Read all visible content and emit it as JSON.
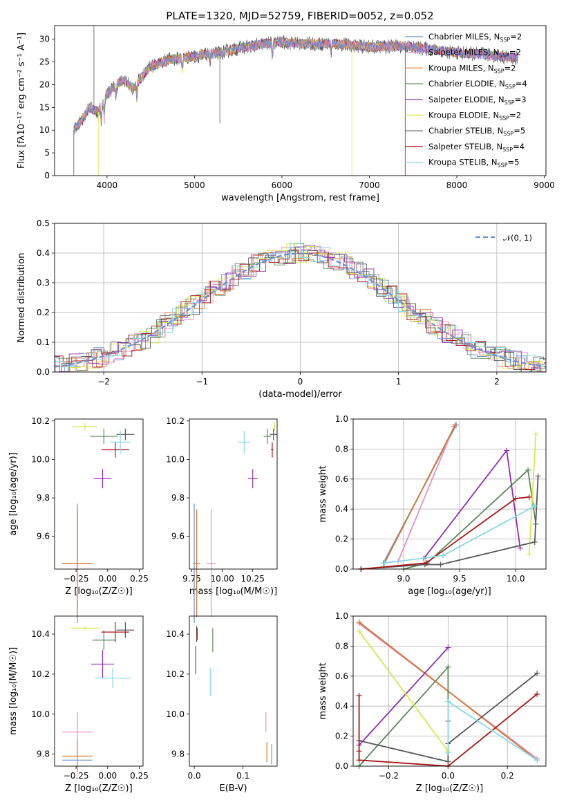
{
  "colors": [
    "#6a8fd6",
    "#e58fc6",
    "#d9782d",
    "#5a8a5a",
    "#8e2db0",
    "#d6e84a",
    "#555555",
    "#a81414",
    "#86d8e4"
  ],
  "chart_data": [
    {
      "id": "spectrum",
      "type": "line",
      "title": "PLATE=1320, MJD=52759, FIBERID=0052, z=0.052",
      "xlabel": "wavelength [Angstrom, rest frame]",
      "ylabel": "Flux [fλ10⁻¹⁷ erg cm⁻² s⁻¹ A⁻¹]",
      "xlim": [
        3400,
        9020
      ],
      "ylim": [
        0,
        33
      ],
      "xticks": [
        "4000",
        "5000",
        "6000",
        "7000",
        "8000",
        "9000"
      ],
      "yticks": [
        "0",
        "5",
        "10",
        "15",
        "20",
        "25",
        "30"
      ],
      "continuum": [
        [
          3620,
          10
        ],
        [
          3700,
          12
        ],
        [
          3800,
          15
        ],
        [
          3900,
          14
        ],
        [
          4000,
          18
        ],
        [
          4100,
          20
        ],
        [
          4200,
          21
        ],
        [
          4300,
          19
        ],
        [
          4400,
          22
        ],
        [
          4500,
          24
        ],
        [
          4700,
          25.5
        ],
        [
          4900,
          26
        ],
        [
          5100,
          26.5
        ],
        [
          5300,
          27
        ],
        [
          5500,
          28
        ],
        [
          5800,
          29
        ],
        [
          6000,
          29.3
        ],
        [
          6300,
          29
        ],
        [
          6600,
          29
        ],
        [
          7000,
          28.3
        ],
        [
          7400,
          28.5
        ],
        [
          7600,
          28
        ],
        [
          7800,
          27.5
        ],
        [
          8000,
          27
        ],
        [
          8300,
          26.7
        ],
        [
          8600,
          26
        ],
        [
          8700,
          25.7
        ]
      ],
      "series": [
        {
          "name": "Chabrier MILES, N",
          "sub": "SSP",
          "n": "=2"
        },
        {
          "name": "Salpeter MILES, N",
          "sub": "SSP",
          "n": "=2"
        },
        {
          "name": "Kroupa MILES, N",
          "sub": "SSP",
          "n": "=2"
        },
        {
          "name": "Chabrier ELODIE, N",
          "sub": "SSP",
          "n": "=4"
        },
        {
          "name": "Salpeter ELODIE, N",
          "sub": "SSP",
          "n": "=3"
        },
        {
          "name": "Kroupa ELODIE, N",
          "sub": "SSP",
          "n": "=2"
        },
        {
          "name": "Chabrier STELIB, N",
          "sub": "SSP",
          "n": "=5"
        },
        {
          "name": "Salpeter STELIB, N",
          "sub": "SSP",
          "n": "=4"
        },
        {
          "name": "Kroupa STELIB, N",
          "sub": "SSP",
          "n": "=5"
        }
      ],
      "legend": "right"
    },
    {
      "id": "residuals",
      "type": "line",
      "xlabel": "(data-model)/error",
      "ylabel": "Normed distribution",
      "xlim": [
        -2.5,
        2.5
      ],
      "ylim": [
        0,
        0.5
      ],
      "xticks": [
        "−2",
        "−1",
        "0",
        "1",
        "2"
      ],
      "yticks": [
        "0.0",
        "0.1",
        "0.2",
        "0.3",
        "0.4",
        "0.5"
      ],
      "reference_label": "𝒩(0, 1)",
      "grid": true,
      "legend": "top-right"
    },
    {
      "id": "age_vs_Z",
      "type": "scatter",
      "xlabel": "Z [log₁₀(Z/Z☉)]",
      "ylabel": "age  [log₁₀(age/yr)]",
      "xlim": [
        -0.42,
        0.28
      ],
      "ylim": [
        9.43,
        10.21
      ],
      "xticks": [
        "−0.25",
        "0.00",
        "0.25"
      ],
      "xtick_values": [
        -0.25,
        0,
        0.25
      ],
      "yticks": [
        "9.6",
        "9.8",
        "10.0",
        "10.2"
      ],
      "ytick_values": [
        9.6,
        9.8,
        10.0,
        10.2
      ],
      "points": [
        {
          "x": -0.24,
          "y": 9.46,
          "xerr": 0.12,
          "yerr": 0.31,
          "c": 0
        },
        {
          "x": -0.24,
          "y": 9.46,
          "xerr": 0.12,
          "yerr": 0.28,
          "c": 1
        },
        {
          "x": -0.24,
          "y": 9.46,
          "xerr": 0.12,
          "yerr": 0.28,
          "c": 2
        },
        {
          "x": -0.03,
          "y": 10.12,
          "xerr": 0.11,
          "yerr": 0.04,
          "c": 3
        },
        {
          "x": -0.04,
          "y": 9.9,
          "xerr": 0.07,
          "yerr": 0.05,
          "c": 4
        },
        {
          "x": -0.18,
          "y": 10.17,
          "xerr": 0.1,
          "yerr": 0.02,
          "c": 5
        },
        {
          "x": 0.14,
          "y": 10.13,
          "xerr": 0.07,
          "yerr": 0.03,
          "c": 6
        },
        {
          "x": 0.06,
          "y": 10.05,
          "xerr": 0.11,
          "yerr": 0.04,
          "c": 7
        },
        {
          "x": 0.1,
          "y": 10.09,
          "xerr": 0.08,
          "yerr": 0.06,
          "c": 8
        }
      ]
    },
    {
      "id": "age_vs_mass",
      "type": "scatter",
      "xlabel": "mass [log₁₀(M/M☉)]",
      "xlim": [
        9.73,
        10.45
      ],
      "ylim": [
        9.43,
        10.21
      ],
      "xticks": [
        "9.75",
        "10.00",
        "10.25"
      ],
      "xtick_values": [
        9.75,
        10.0,
        10.25
      ],
      "yticks": [
        "9.6",
        "9.8",
        "10.0",
        "10.2"
      ],
      "ytick_values": [
        9.6,
        9.8,
        10.0,
        10.2
      ],
      "points": [
        {
          "x": 9.77,
          "y": 9.46,
          "xerr": 0.0,
          "yerr": 0.31,
          "c": 0
        },
        {
          "x": 9.91,
          "y": 9.46,
          "xerr": 0.04,
          "yerr": 0.28,
          "c": 1
        },
        {
          "x": 9.79,
          "y": 9.46,
          "xerr": 0.03,
          "yerr": 0.28,
          "c": 2
        },
        {
          "x": 10.37,
          "y": 10.12,
          "xerr": 0.03,
          "yerr": 0.04,
          "c": 3
        },
        {
          "x": 10.25,
          "y": 9.9,
          "xerr": 0.04,
          "yerr": 0.05,
          "c": 4
        },
        {
          "x": 10.43,
          "y": 10.17,
          "xerr": 0.01,
          "yerr": 0.02,
          "c": 5
        },
        {
          "x": 10.42,
          "y": 10.13,
          "xerr": 0.03,
          "yerr": 0.03,
          "c": 6
        },
        {
          "x": 10.41,
          "y": 10.05,
          "xerr": 0.01,
          "yerr": 0.04,
          "c": 7
        },
        {
          "x": 10.18,
          "y": 10.09,
          "xerr": 0.05,
          "yerr": 0.06,
          "c": 8
        }
      ]
    },
    {
      "id": "weight_vs_age",
      "type": "line",
      "xlabel": "age  [log₁₀(age/yr)]",
      "ylabel": "mass weight",
      "xlim": [
        8.55,
        10.27
      ],
      "ylim": [
        0,
        1.0
      ],
      "xticks": [
        "9.0",
        "9.5",
        "10.0"
      ],
      "xtick_values": [
        9.0,
        9.5,
        10.0
      ],
      "yticks": [
        "0.0",
        "0.2",
        "0.4",
        "0.6",
        "0.8",
        "1.0"
      ],
      "ytick_values": [
        0,
        0.2,
        0.4,
        0.6,
        0.8,
        1.0
      ],
      "grid": true,
      "lines": [
        {
          "c": 0,
          "x": [
            8.82,
            9.47
          ],
          "y": [
            0.04,
            0.96
          ]
        },
        {
          "c": 1,
          "x": [
            8.95,
            9.45
          ],
          "y": [
            0.05,
            0.95
          ]
        },
        {
          "c": 2,
          "x": [
            8.83,
            9.46
          ],
          "y": [
            0.04,
            0.96
          ]
        },
        {
          "c": 3,
          "x": [
            9.0,
            9.21,
            10.11,
            10.18
          ],
          "y": [
            0.0,
            0.04,
            0.66,
            0.3
          ]
        },
        {
          "c": 4,
          "x": [
            9.18,
            9.92,
            10.04
          ],
          "y": [
            0.07,
            0.79,
            0.14
          ]
        },
        {
          "c": 5,
          "x": [
            10.12,
            10.18
          ],
          "y": [
            0.1,
            0.9
          ]
        },
        {
          "c": 6,
          "x": [
            8.62,
            9.19,
            9.33,
            10.17,
            10.2
          ],
          "y": [
            0.0,
            0.03,
            0.03,
            0.18,
            0.62
          ]
        },
        {
          "c": 7,
          "x": [
            8.62,
            9.2,
            10.0,
            10.12
          ],
          "y": [
            0.0,
            0.04,
            0.47,
            0.48
          ]
        },
        {
          "c": 8,
          "x": [
            8.83,
            9.35,
            10.17
          ],
          "y": [
            0.04,
            0.09,
            0.42
          ]
        }
      ]
    },
    {
      "id": "mass_vs_Z",
      "type": "scatter",
      "xlabel": "Z [log₁₀(Z/Z☉)]",
      "ylabel": "mass [log₁₀(M/M☉)]",
      "xlim": [
        -0.42,
        0.28
      ],
      "ylim": [
        9.74,
        10.49
      ],
      "xticks": [
        "−0.25",
        "0.00",
        "0.25"
      ],
      "xtick_values": [
        -0.25,
        0,
        0.25
      ],
      "yticks": [
        "9.8",
        "10.0",
        "10.2",
        "10.4"
      ],
      "ytick_values": [
        9.8,
        10.0,
        10.2,
        10.4
      ],
      "points": [
        {
          "x": -0.24,
          "y": 9.77,
          "xerr": 0.12,
          "yerr": 0.0,
          "c": 0
        },
        {
          "x": -0.24,
          "y": 9.91,
          "xerr": 0.12,
          "yerr": 0.1,
          "c": 1
        },
        {
          "x": -0.24,
          "y": 9.79,
          "xerr": 0.12,
          "yerr": 0.08,
          "c": 2
        },
        {
          "x": -0.03,
          "y": 10.37,
          "xerr": 0.09,
          "yerr": 0.05,
          "c": 3
        },
        {
          "x": -0.04,
          "y": 10.25,
          "xerr": 0.09,
          "yerr": 0.07,
          "c": 4
        },
        {
          "x": -0.18,
          "y": 10.43,
          "xerr": 0.12,
          "yerr": 0.01,
          "c": 5
        },
        {
          "x": 0.14,
          "y": 10.42,
          "xerr": 0.07,
          "yerr": 0.04,
          "c": 6
        },
        {
          "x": 0.06,
          "y": 10.41,
          "xerr": 0.11,
          "yerr": 0.05,
          "c": 7
        },
        {
          "x": 0.04,
          "y": 10.18,
          "xerr": 0.14,
          "yerr": 0.05,
          "c": 8
        }
      ]
    },
    {
      "id": "mass_vs_ebv",
      "type": "scatter",
      "xlabel": "E(B-V)",
      "xlim": [
        -0.01,
        0.17
      ],
      "ylim": [
        9.74,
        10.49
      ],
      "xticks": [
        "0.0",
        "0.1"
      ],
      "xtick_values": [
        0.0,
        0.1
      ],
      "yticks": [
        "9.8",
        "10.0",
        "10.2",
        "10.4"
      ],
      "ytick_values": [
        9.8,
        10.0,
        10.2,
        10.4
      ],
      "points": [
        {
          "x": 0.159,
          "y": 9.8,
          "xerr": 0.0,
          "yerr": 0.05,
          "c": 0
        },
        {
          "x": 0.147,
          "y": 9.96,
          "xerr": 0.0,
          "yerr": 0.05,
          "c": 1
        },
        {
          "x": 0.149,
          "y": 9.81,
          "xerr": 0.0,
          "yerr": 0.05,
          "c": 2
        },
        {
          "x": 0.038,
          "y": 10.37,
          "xerr": 0.0,
          "yerr": 0.06,
          "c": 3
        },
        {
          "x": 0.003,
          "y": 10.27,
          "xerr": 0.0,
          "yerr": 0.07,
          "c": 4
        },
        {
          "x": 0.007,
          "y": 10.41,
          "xerr": 0.0,
          "yerr": 0.02,
          "c": 5
        },
        {
          "x": 0.005,
          "y": 10.4,
          "xerr": 0.0,
          "yerr": 0.04,
          "c": 6
        },
        {
          "x": 0.006,
          "y": 10.4,
          "xerr": 0.0,
          "yerr": 0.03,
          "c": 7
        },
        {
          "x": 0.033,
          "y": 10.16,
          "xerr": 0.0,
          "yerr": 0.07,
          "c": 8
        }
      ]
    },
    {
      "id": "weight_vs_Z",
      "type": "line",
      "xlabel": "Z [log₁₀(Z/Z☉)]",
      "ylabel": "mass weight",
      "xlim": [
        -0.32,
        0.33
      ],
      "ylim": [
        0,
        1.0
      ],
      "xticks": [
        "−0.2",
        "0.0",
        "0.2"
      ],
      "xtick_values": [
        -0.2,
        0.0,
        0.2
      ],
      "yticks": [
        "0.0",
        "0.2",
        "0.4",
        "0.6",
        "0.8",
        "1.0"
      ],
      "ytick_values": [
        0,
        0.2,
        0.4,
        0.6,
        0.8,
        1.0
      ],
      "grid": true,
      "lines": [
        {
          "c": 0,
          "x": [
            -0.3,
            0.3
          ],
          "y": [
            0.96,
            0.04
          ]
        },
        {
          "c": 1,
          "x": [
            -0.3,
            0.3
          ],
          "y": [
            0.95,
            0.05
          ]
        },
        {
          "c": 2,
          "x": [
            -0.3,
            0.3
          ],
          "y": [
            0.96,
            0.04
          ]
        },
        {
          "c": 3,
          "x": [
            -0.3,
            0.0,
            0.0
          ],
          "y": [
            0.0,
            0.66,
            0.3
          ]
        },
        {
          "c": 4,
          "x": [
            -0.3,
            0.0
          ],
          "y": [
            0.14,
            0.79
          ]
        },
        {
          "c": 5,
          "x": [
            -0.3,
            0.0
          ],
          "y": [
            0.9,
            0.1
          ]
        },
        {
          "c": 6,
          "x": [
            -0.3,
            0.0,
            0.0,
            0.3
          ],
          "y": [
            0.17,
            0.03,
            0.15,
            0.62
          ]
        },
        {
          "c": 7,
          "x": [
            -0.3,
            -0.3,
            -0.3,
            0.0,
            0.3
          ],
          "y": [
            0.47,
            0.1,
            0.04,
            0.0,
            0.48
          ]
        },
        {
          "c": 8,
          "x": [
            0.0,
            0.0,
            0.3
          ],
          "y": [
            0.09,
            0.43,
            0.04
          ]
        }
      ]
    }
  ]
}
